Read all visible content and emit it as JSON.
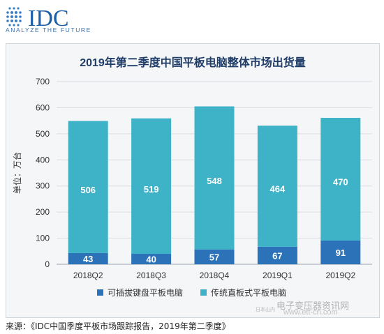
{
  "brand": {
    "logo_text": "IDC",
    "tagline": "ANALYZE THE FUTURE",
    "color": "#1d5fa8"
  },
  "chart_data": {
    "type": "bar",
    "stacked": true,
    "title": "2019年第二季度中国平板电脑整体市场出货量",
    "ylabel": "单位：万台",
    "xlabel": "",
    "ylim": [
      0,
      700
    ],
    "yticks": [
      0,
      100,
      200,
      300,
      400,
      500,
      600,
      700
    ],
    "grid": true,
    "categories": [
      "2018Q2",
      "2018Q3",
      "2018Q4",
      "2019Q1",
      "2019Q2"
    ],
    "series": [
      {
        "name": "可插拔键盘平板电脑",
        "values": [
          43,
          40,
          57,
          67,
          91
        ],
        "color": "#2b72b8"
      },
      {
        "name": "传统直板式平板电脑",
        "values": [
          506,
          519,
          548,
          464,
          470
        ],
        "color": "#3eb2c6"
      }
    ],
    "legend_position": "bottom"
  },
  "source_note": "来源：《IDC中国季度平板市场跟踪报告，2019年第二季度》",
  "watermark": {
    "line1": "电子变压器资讯网",
    "line2": "www.ett-cn.com",
    "line3": "日本山内"
  }
}
